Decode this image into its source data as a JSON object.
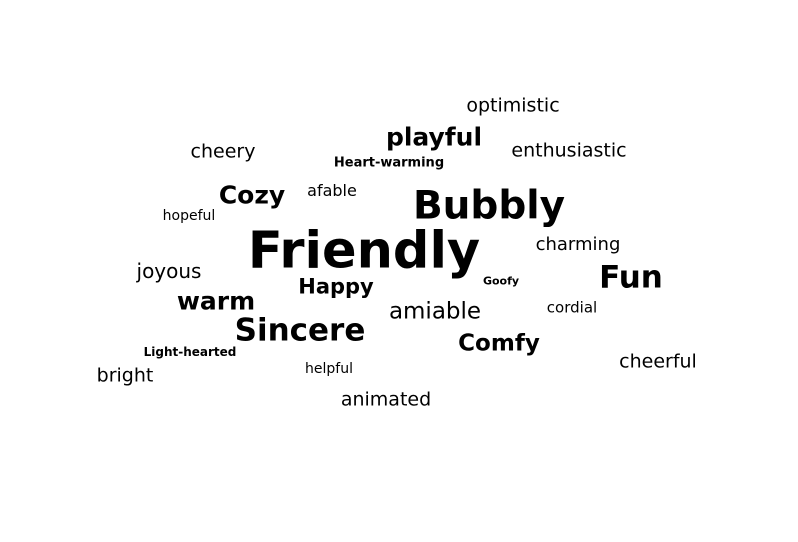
{
  "text_color": "#000000",
  "background_color": "#ffffff",
  "words": [
    "optimistic",
    "playful",
    "cheery",
    "enthusiastic",
    "Heart-warming",
    "Cozy",
    "afable",
    "Bubbly",
    "hopeful",
    "Friendly",
    "charming",
    "joyous",
    "Goofy",
    "Fun",
    "Happy",
    "warm",
    "amiable",
    "cordial",
    "Sincere",
    "Comfy",
    "Light-hearted",
    "cheerful",
    "helpful",
    "bright",
    "animated"
  ]
}
